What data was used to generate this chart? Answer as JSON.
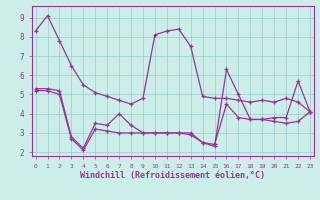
{
  "xlabel": "Windchill (Refroidissement éolien,°C)",
  "background_color": "#cceee8",
  "line_color": "#993399",
  "grid_color": "#99cccc",
  "x_ticks": [
    0,
    1,
    2,
    3,
    4,
    5,
    6,
    7,
    8,
    9,
    10,
    11,
    12,
    13,
    14,
    15,
    16,
    17,
    18,
    19,
    20,
    21,
    22,
    23
  ],
  "y_ticks": [
    2,
    3,
    4,
    5,
    6,
    7,
    8,
    9
  ],
  "ylim": [
    1.8,
    9.6
  ],
  "xlim": [
    -0.3,
    23.3
  ],
  "series": [
    [
      8.3,
      9.1,
      7.8,
      6.5,
      5.5,
      5.1,
      4.9,
      4.7,
      4.5,
      4.8,
      8.1,
      8.3,
      8.4,
      7.5,
      4.9,
      4.8,
      4.8,
      4.7,
      4.6,
      4.7,
      4.6,
      4.8,
      4.6,
      4.1
    ],
    [
      5.3,
      5.3,
      5.2,
      2.8,
      2.2,
      3.5,
      3.4,
      4.0,
      3.4,
      3.0,
      3.0,
      3.0,
      3.0,
      2.9,
      2.5,
      2.3,
      6.3,
      5.0,
      3.7,
      3.7,
      3.8,
      3.8,
      5.7,
      4.1
    ],
    [
      5.2,
      5.2,
      5.0,
      2.7,
      2.1,
      3.2,
      3.1,
      3.0,
      3.0,
      3.0,
      3.0,
      3.0,
      3.0,
      3.0,
      2.5,
      2.4,
      4.5,
      3.8,
      3.7,
      3.7,
      3.6,
      3.5,
      3.6,
      4.1
    ]
  ]
}
